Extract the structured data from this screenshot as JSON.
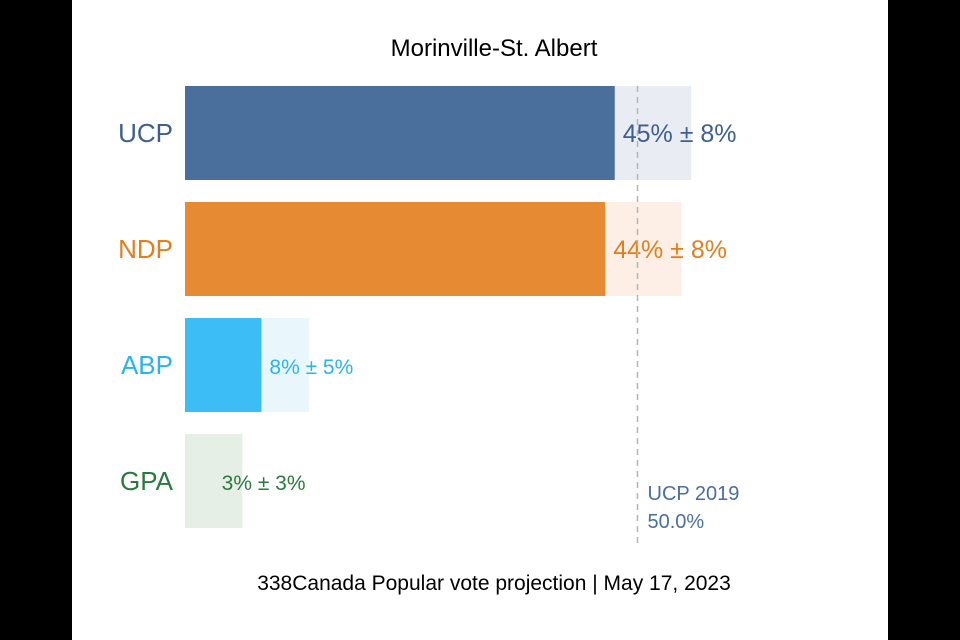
{
  "chart_data": {
    "type": "bar",
    "orientation": "horizontal",
    "title": "Morinville-St. Albert",
    "footer": "338Canada Popular vote projection | May 17, 2023",
    "categories": [
      "UCP",
      "NDP",
      "ABP",
      "GPA"
    ],
    "series": [
      {
        "values": [
          45,
          44,
          8,
          3
        ],
        "margins": [
          8,
          8,
          5,
          3
        ],
        "labels": [
          "45% ± 8%",
          "44% ± 8%",
          "8% ± 5%",
          "3% ± 3%"
        ],
        "colors": [
          "#4a6f9c",
          "#e68a33",
          "#3dbdf5",
          "#e5efe6"
        ],
        "range_colors": [
          "#e9edf3",
          "#fdefe5",
          "#e9f7fd",
          "#e5efe6"
        ],
        "label_colors": [
          "#3d5f8f",
          "#e07f1f",
          "#2ab4ef",
          "#2a7a3e"
        ]
      }
    ],
    "xlim": [
      0,
      65
    ],
    "grid": false,
    "reference_line": {
      "value": 50.0,
      "label_line1": "UCP 2019",
      "label_line2": "50.0%"
    }
  }
}
